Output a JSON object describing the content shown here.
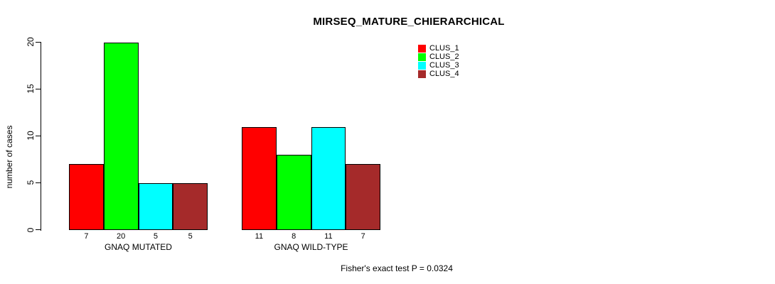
{
  "title": "MIRSEQ_MATURE_CHIERARCHICAL",
  "chart_data": {
    "type": "bar",
    "title": "MIRSEQ_MATURE_CHIERARCHICAL",
    "xlabel": "",
    "ylabel": "number of cases",
    "ylim": [
      0,
      20
    ],
    "yticks": [
      0,
      5,
      10,
      15,
      20
    ],
    "grid": false,
    "legend_position": "top-right",
    "categories": [
      "GNAQ MUTATED",
      "GNAQ WILD-TYPE"
    ],
    "series": [
      {
        "name": "CLUS_1",
        "color": "#ff0000",
        "values": [
          7,
          11
        ]
      },
      {
        "name": "CLUS_2",
        "color": "#00ff00",
        "values": [
          20,
          8
        ]
      },
      {
        "name": "CLUS_3",
        "color": "#00ffff",
        "values": [
          5,
          11
        ]
      },
      {
        "name": "CLUS_4",
        "color": "#a52a2a",
        "values": [
          5,
          7
        ]
      }
    ],
    "bar_value_labels": {
      "GNAQ MUTATED": [
        "7",
        "20",
        "5",
        "5"
      ],
      "GNAQ WILD-TYPE": [
        "11",
        "8",
        "11",
        "7"
      ]
    },
    "annotation": "Fisher's exact test P = 0.0324"
  }
}
